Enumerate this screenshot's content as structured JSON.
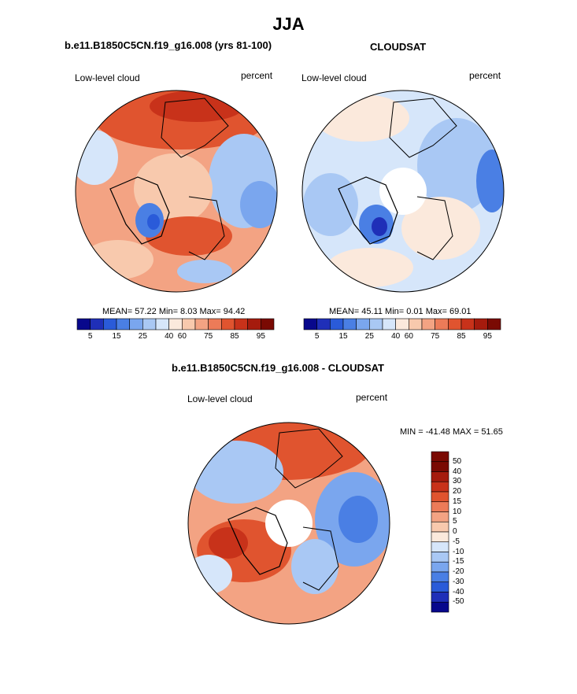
{
  "page": {
    "title": "JJA",
    "subtitle_left": "b.e11.B1850C5CN.f19_g16.008 (yrs 81-100)",
    "subtitle_right": "CLOUDSAT",
    "subtitle_diff": "b.e11.B1850C5CN.f19_g16.008 - CLOUDSAT"
  },
  "panels": [
    {
      "variable": "Low-level cloud",
      "units": "percent",
      "stats_text": "MEAN=  57.22  Min=   8.03  Max=  94.42",
      "colorbar_ticks": [
        "5",
        "15",
        "25",
        "40",
        "60",
        "75",
        "85",
        "95"
      ],
      "mean": 57.22,
      "min": 8.03,
      "max": 94.42
    },
    {
      "variable": "Low-level cloud",
      "units": "percent",
      "stats_text": "MEAN=  45.11  Min=   0.01  Max=  69.01",
      "colorbar_ticks": [
        "5",
        "15",
        "25",
        "40",
        "60",
        "75",
        "85",
        "95"
      ],
      "mean": 45.11,
      "min": 0.01,
      "max": 69.01
    },
    {
      "variable": "Low-level cloud",
      "units": "percent",
      "stats_text": "MIN = -41.48 MAX =  51.65",
      "colorbar_ticks": [
        "50",
        "40",
        "30",
        "20",
        "15",
        "10",
        "5",
        "0",
        "-5",
        "-10",
        "-15",
        "-20",
        "-30",
        "-40",
        "-50"
      ],
      "min": -41.48,
      "max": 51.65
    }
  ],
  "colors": {
    "abs_scale": [
      "#08088c",
      "#1f2fb8",
      "#2a5bd9",
      "#4a7fe4",
      "#7aa6ee",
      "#a9c8f4",
      "#d6e6fa",
      "#fbe9dc",
      "#f8c9ad",
      "#f3a383",
      "#ec7b58",
      "#e0542f",
      "#c8321a",
      "#a51b0d",
      "#7a0a03"
    ],
    "diff_scale": [
      "#7a0a03",
      "#a51b0d",
      "#c8321a",
      "#e0542f",
      "#ec7b58",
      "#f3a383",
      "#f8c9ad",
      "#fbe9dc",
      "#d6e6fa",
      "#a9c8f4",
      "#7aa6ee",
      "#4a7fe4",
      "#2a5bd9",
      "#1f2fb8",
      "#08088c"
    ]
  }
}
